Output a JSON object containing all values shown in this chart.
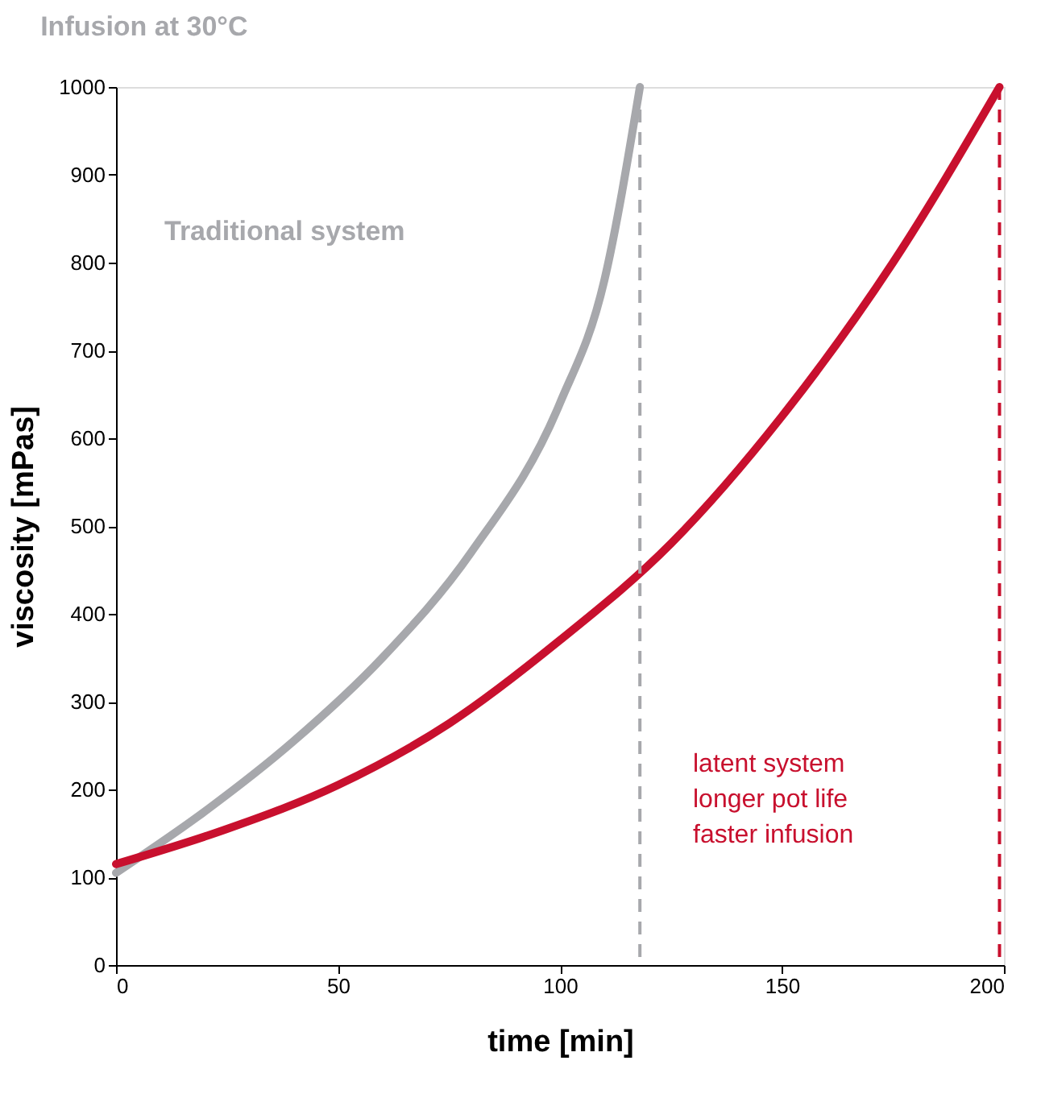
{
  "chart_data": {
    "type": "line",
    "title": "Infusion at 30°C",
    "xlabel": "time [min]",
    "ylabel": "viscosity [mPas]",
    "series": [
      {
        "name": "Traditional system",
        "color": "#a7a8ac",
        "x": [
          0,
          20,
          40,
          60,
          80,
          100,
          110,
          118
        ],
        "values": [
          105,
          175,
          255,
          350,
          470,
          640,
          780,
          1000
        ]
      },
      {
        "name": "latent system",
        "color": "#c8102e",
        "x": [
          0,
          25,
          50,
          75,
          100,
          125,
          150,
          175,
          199
        ],
        "values": [
          115,
          155,
          205,
          275,
          370,
          480,
          625,
          800,
          1000
        ]
      }
    ],
    "annotations": [
      "longer pot life",
      "faster infusion"
    ],
    "ref_lines": [
      {
        "axis": "x",
        "value": 118,
        "color": "#a7a8ac",
        "line_style": "dashed"
      },
      {
        "axis": "x",
        "value": 199,
        "color": "#c8102e",
        "line_style": "dashed"
      }
    ],
    "xlim": [
      0,
      200
    ],
    "ylim": [
      0,
      1000
    ],
    "xticks": [
      0,
      50,
      100,
      150,
      200
    ],
    "yticks": [
      0,
      100,
      200,
      300,
      400,
      500,
      600,
      700,
      800,
      900,
      1000
    ],
    "grid": false,
    "marker": "none",
    "line_style": "solid"
  }
}
